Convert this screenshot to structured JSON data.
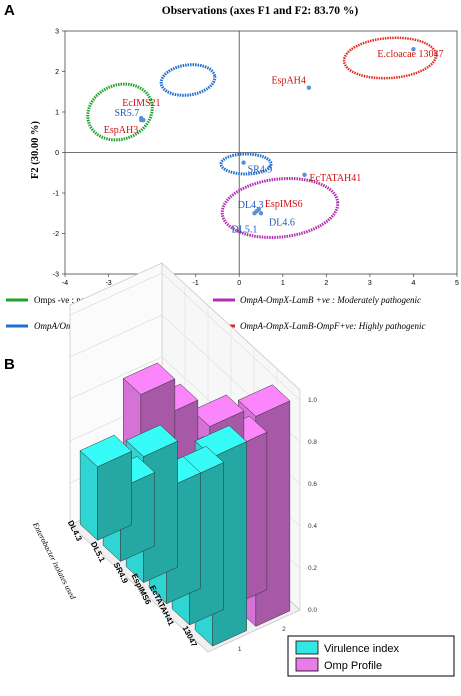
{
  "panel_a": {
    "letter": "A"
  },
  "panel_b": {
    "letter": "B"
  },
  "chart_data": [
    {
      "type": "scatter",
      "title": "Observations (axes F1 and F2: 83.70 %)",
      "xlabel": "",
      "ylabel": "F2 (30.00 %)",
      "xlim": [
        -4,
        5
      ],
      "ylim": [
        -3,
        3
      ],
      "xticks": [
        -4,
        -3,
        -2,
        -1,
        0,
        1,
        2,
        3,
        4,
        5
      ],
      "yticks": [
        -3,
        -2,
        -1,
        0,
        1,
        2,
        3
      ],
      "grid": false,
      "points": [
        {
          "label": "EspAH4",
          "x": 1.6,
          "y": 1.6,
          "color": "#cc1111",
          "group": 1
        },
        {
          "label": "E.cloacae 13047",
          "x": 4.0,
          "y": 2.55,
          "color": "#cc1111",
          "group": 3
        },
        {
          "label": "EcIMS21",
          "x": -2.2,
          "y": 0.8,
          "color": "#cc1111",
          "group": 0
        },
        {
          "label": "SR5.7",
          "x": -2.25,
          "y": 0.85,
          "color": "#2255bb",
          "group": 0
        },
        {
          "label": "EspAH3",
          "x": -2.25,
          "y": 0.8,
          "color": "#cc1111",
          "group": 0
        },
        {
          "label": "SR4.9",
          "x": 0.1,
          "y": -0.25,
          "color": "#2255bb",
          "group": 1
        },
        {
          "label": "EcTATAH41",
          "x": 1.5,
          "y": -0.55,
          "color": "#cc1111",
          "group": 2
        },
        {
          "label": "DL4.3",
          "x": 0.4,
          "y": -1.45,
          "color": "#2255bb",
          "group": 2
        },
        {
          "label": "EspIMS6",
          "x": 0.45,
          "y": -1.4,
          "color": "#cc1111",
          "group": 2
        },
        {
          "label": "DL4.6",
          "x": 0.5,
          "y": -1.5,
          "color": "#2255bb",
          "group": 2
        },
        {
          "label": "DL5.1",
          "x": 0.35,
          "y": -1.5,
          "color": "#2255bb",
          "group": 2
        }
      ],
      "groups": [
        {
          "name": "Omps -ve : non-pathogenic",
          "color": "#22a22a"
        },
        {
          "name": "OmpA/OmpX +ve : weakly pathogenic",
          "color": "#1f6fd0"
        },
        {
          "name": "OmpA-OmpX-LamB +ve : Moderately pathogenic",
          "color": "#b02fb0"
        },
        {
          "name": "OmpA-OmpX-LamB-OmpF+ve: Highly pathogenic",
          "color": "#e02a1e"
        }
      ]
    },
    {
      "type": "bar",
      "subtype": "3d-bar",
      "categories": [
        "13047",
        "EcTATAH41",
        "EspIMS6",
        "SR4.9",
        "DL5.1",
        "DL4.3"
      ],
      "xlabel": "Enterobacter isolates used",
      "zlim": [
        0.0,
        1.0
      ],
      "zticks": [
        "0.0",
        "0.2",
        "0.4",
        "0.6",
        "0.8",
        "1.0"
      ],
      "depth_ticks": [
        "1",
        "2"
      ],
      "series": [
        {
          "name": "Virulence index",
          "color": "#33e8e4",
          "values": [
            0.9,
            0.7,
            0.55,
            0.6,
            0.35,
            0.35
          ]
        },
        {
          "name": "Omp Profile",
          "color": "#e87ce8",
          "values": [
            1.0,
            0.75,
            0.75,
            0.45,
            0.6,
            0.6
          ]
        }
      ]
    }
  ]
}
